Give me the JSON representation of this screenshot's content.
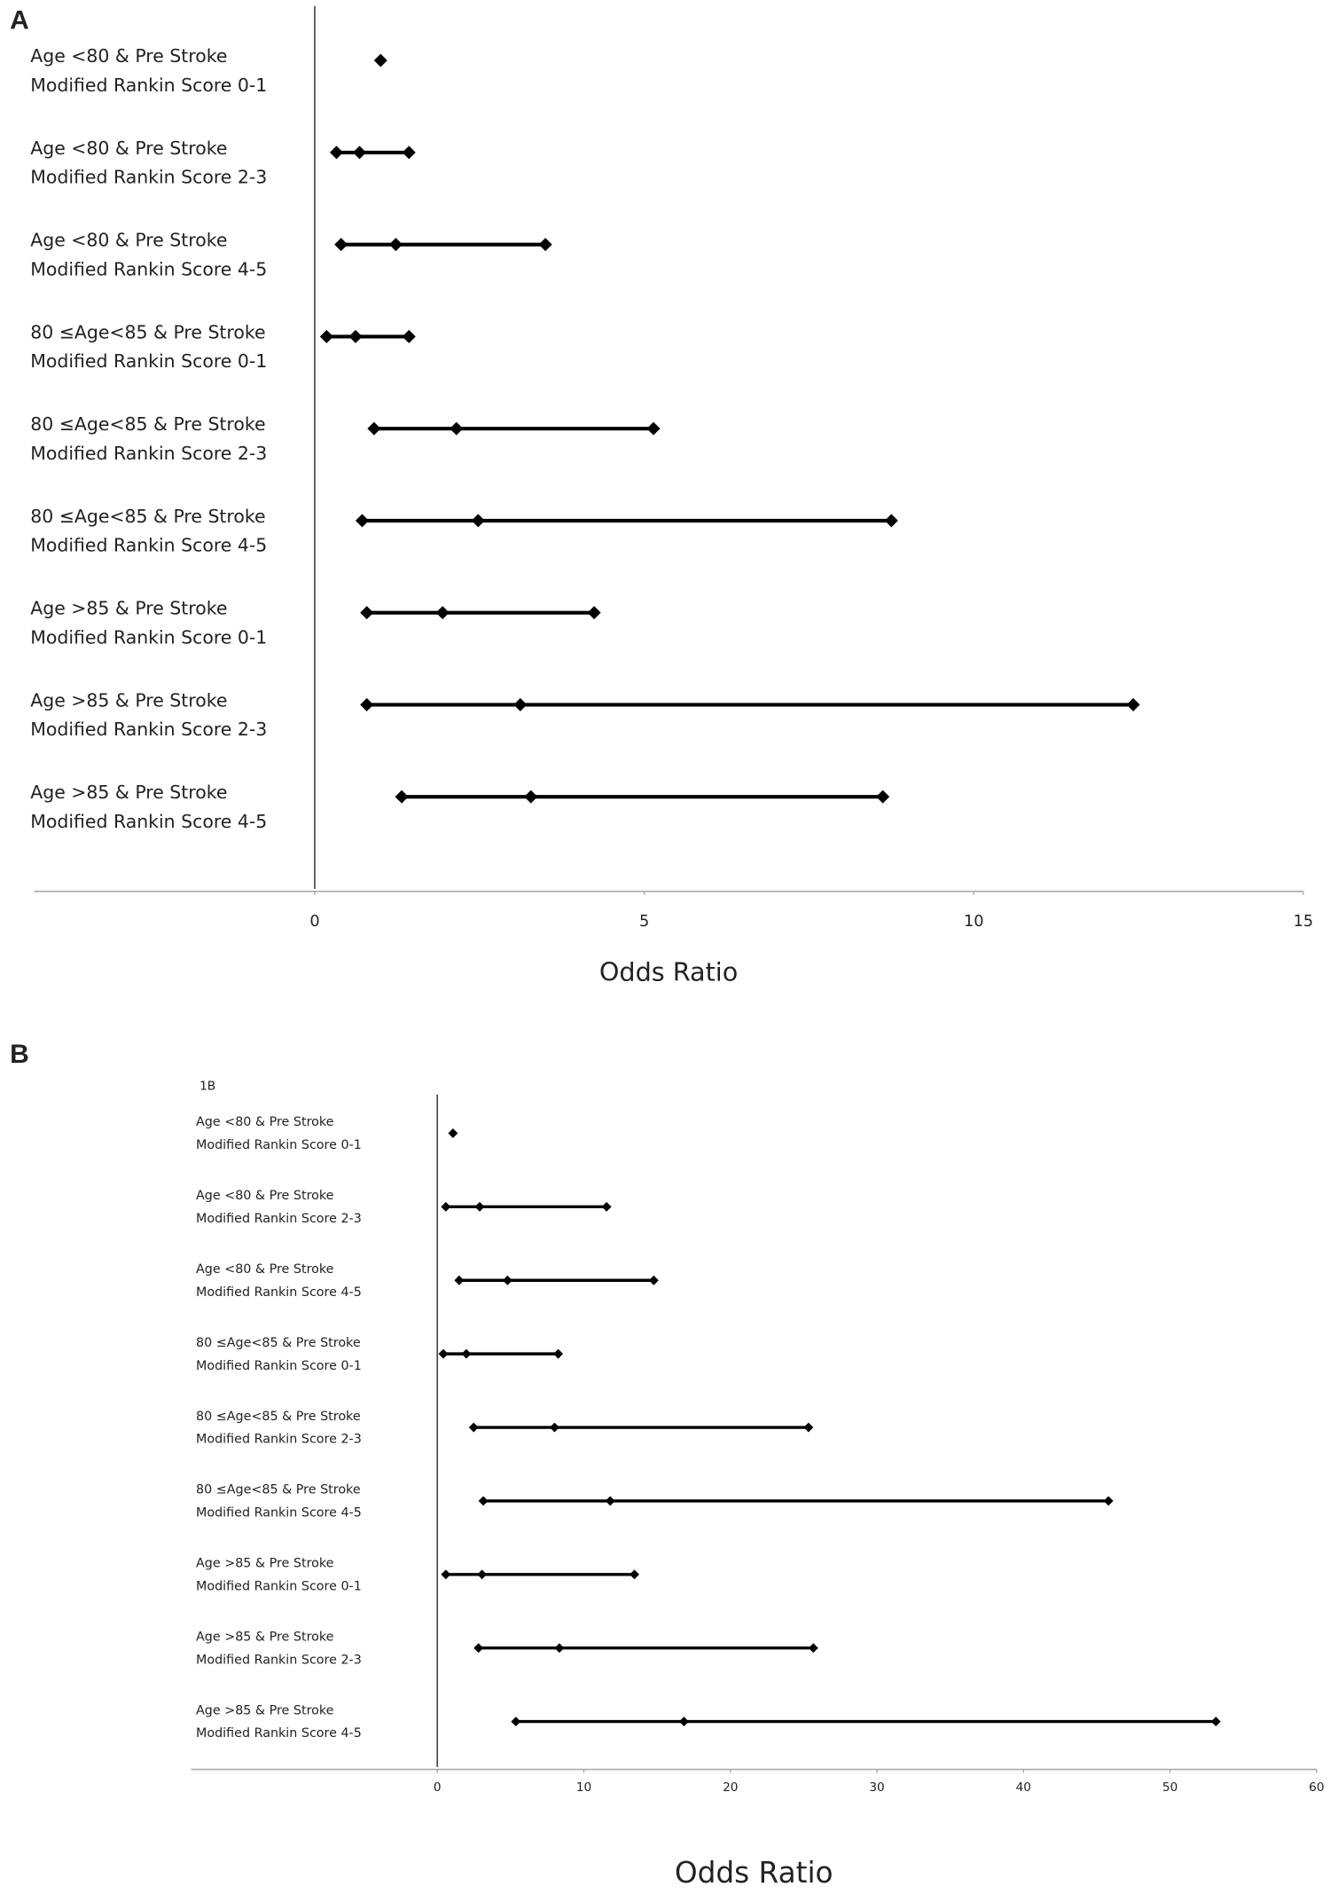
{
  "chart_data": [
    {
      "type": "forest",
      "panel_label": "A",
      "xlabel": "Odds Ratio",
      "categories": [
        [
          "Age <80 & Pre Stroke",
          "Modified Rankin Score 0-1"
        ],
        [
          "Age <80 & Pre Stroke",
          "Modified Rankin Score 2-3"
        ],
        [
          "Age <80 & Pre Stroke",
          "Modified Rankin Score 4-5"
        ],
        [
          "80 ≤Age<85  & Pre Stroke",
          "Modified Rankin Score 0-1"
        ],
        [
          "80 ≤Age<85  & Pre Stroke",
          "Modified Rankin Score 2-3"
        ],
        [
          "80 ≤Age<85  & Pre Stroke",
          "Modified Rankin Score 4-5"
        ],
        [
          "Age >85 & Pre Stroke",
          "Modified Rankin Score 0-1"
        ],
        [
          "Age >85 & Pre Stroke",
          "Modified Rankin Score 2-3"
        ],
        [
          "Age >85 & Pre Stroke",
          "Modified Rankin Score 4-5"
        ]
      ],
      "values": [
        1.0,
        0.68,
        1.23,
        0.62,
        2.15,
        2.48,
        1.94,
        3.12,
        3.28
      ],
      "lower": [
        null,
        0.33,
        0.4,
        0.18,
        0.9,
        0.72,
        0.79,
        0.79,
        1.32
      ],
      "upper": [
        null,
        1.43,
        3.5,
        1.43,
        5.14,
        8.75,
        4.24,
        12.42,
        8.62
      ],
      "color": "#000000",
      "xlim": [
        -4.26,
        15
      ],
      "xticks": [
        0,
        5,
        10,
        15
      ]
    },
    {
      "type": "forest",
      "panel_label": "B",
      "subtitle": "1B",
      "xlabel": "Odds Ratio",
      "categories": [
        [
          "Age <80 & Pre Stroke",
          "Modified Rankin Score 0-1"
        ],
        [
          "Age <80 & Pre Stroke",
          "Modified Rankin Score 2-3"
        ],
        [
          "Age <80 & Pre Stroke",
          "Modified Rankin Score 4-5"
        ],
        [
          "80 ≤Age<85  & Pre Stroke",
          "Modified Rankin Score 0-1"
        ],
        [
          "80 ≤Age<85  & Pre Stroke",
          "Modified Rankin Score 2-3"
        ],
        [
          "80 ≤Age<85  & Pre Stroke",
          "Modified Rankin Score 4-5"
        ],
        [
          "Age >85 & Pre Stroke",
          "Modified Rankin Score 0-1"
        ],
        [
          "Age >85 & Pre Stroke",
          "Modified Rankin Score 2-3"
        ],
        [
          "Age >85 & Pre Stroke",
          "Modified Rankin Score 4-5"
        ]
      ],
      "values": [
        1.07,
        2.89,
        4.79,
        1.98,
        8.0,
        11.8,
        3.05,
        8.33,
        16.83
      ],
      "lower": [
        null,
        0.58,
        1.49,
        0.41,
        2.48,
        3.14,
        0.58,
        2.81,
        5.36
      ],
      "upper": [
        null,
        11.55,
        14.77,
        8.25,
        25.33,
        45.8,
        13.45,
        25.66,
        53.13
      ],
      "color": "#000000",
      "xlim": [
        -16.8,
        60
      ],
      "xticks": [
        0,
        10,
        20,
        30,
        40,
        50,
        60
      ]
    }
  ]
}
